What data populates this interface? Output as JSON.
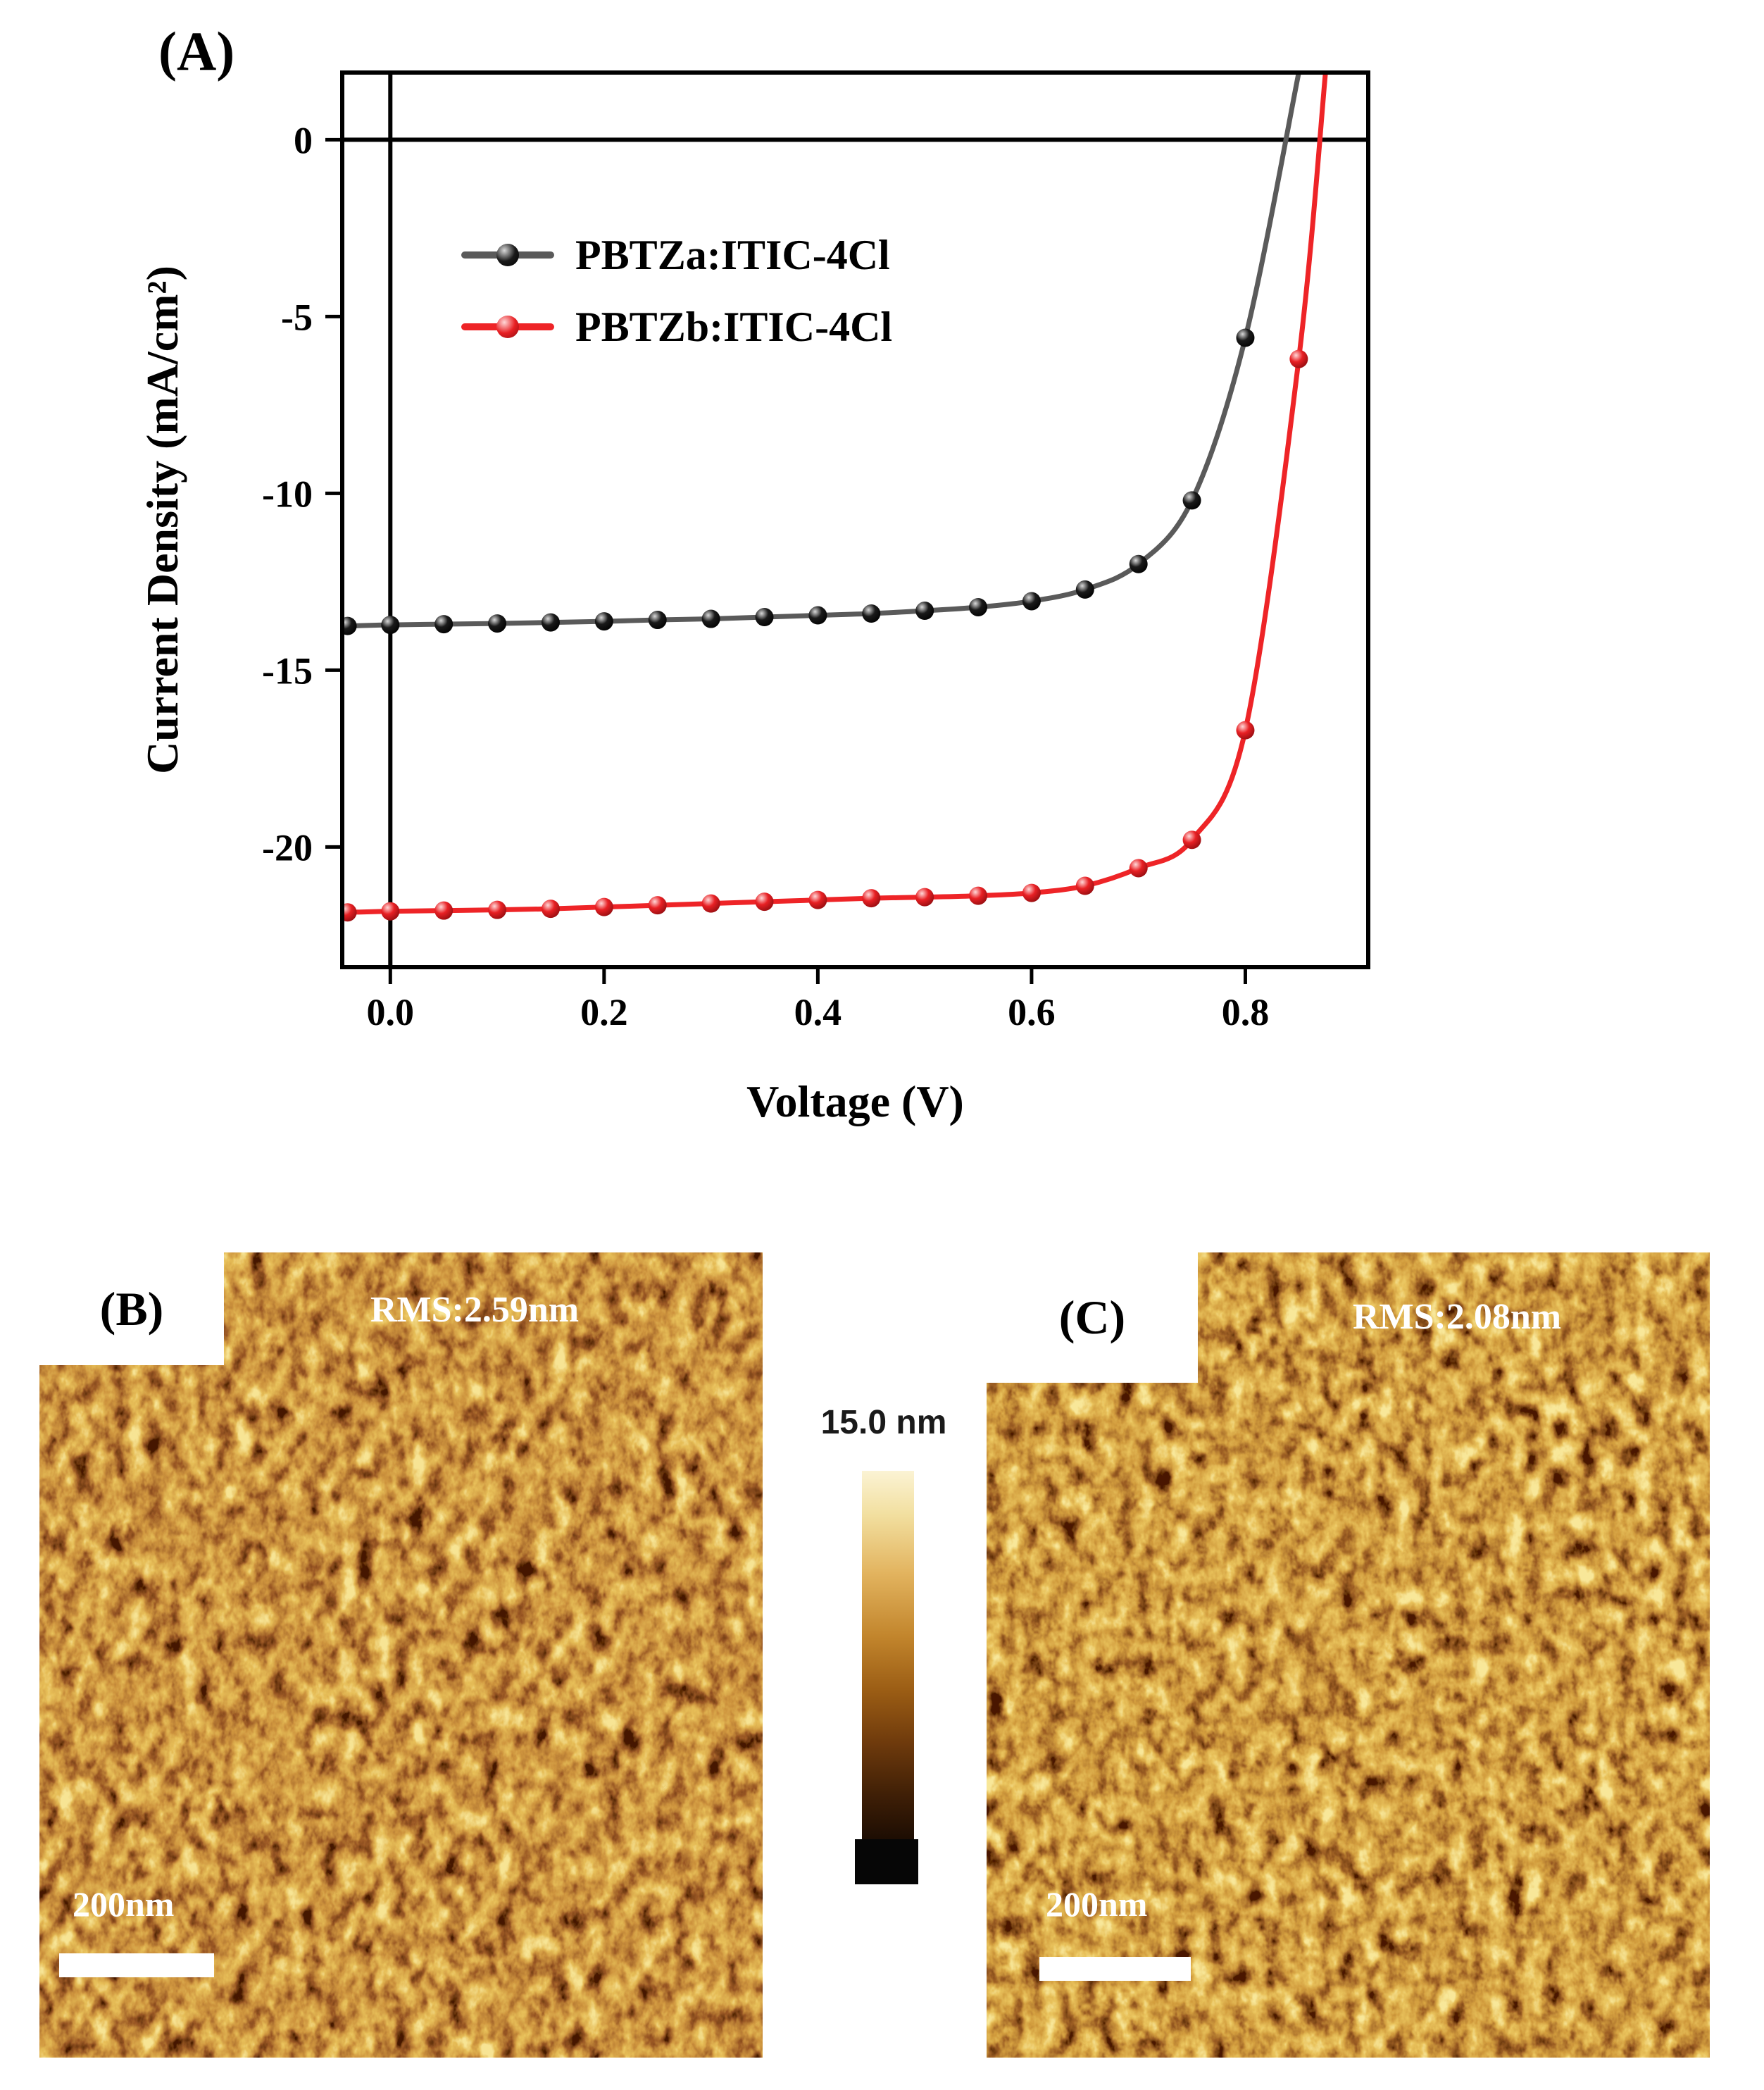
{
  "figure": {
    "background": "#ffffff",
    "panels": {
      "a_label": "(A)",
      "b_label": "(B)",
      "c_label": "(C)"
    }
  },
  "chart_data": {
    "type": "line",
    "title": "",
    "xlabel": "Voltage (V)",
    "ylabel": "Current Density (mA/cm²)",
    "xlim": [
      -0.045,
      0.915
    ],
    "ylim": [
      -23.4,
      1.9
    ],
    "xticks": [
      0.0,
      0.2,
      0.4,
      0.6,
      0.8
    ],
    "xtick_labels": [
      "0.0",
      "0.2",
      "0.4",
      "0.6",
      "0.8"
    ],
    "yticks": [
      0,
      -5,
      -10,
      -15,
      -20
    ],
    "ytick_labels": [
      "0",
      "-5",
      "-10",
      "-15",
      "-20"
    ],
    "grid": false,
    "zero_lines": true,
    "legend_position": "upper-left-inside",
    "series": [
      {
        "name": "PBTZa:ITIC-4Cl",
        "line_color": "#5a5a5a",
        "marker_color": "#1a1a1a",
        "marker_highlight": "#d9d9d9",
        "marker_edge": "#000000",
        "x": [
          -0.04,
          0.0,
          0.05,
          0.1,
          0.15,
          0.2,
          0.25,
          0.3,
          0.35,
          0.4,
          0.45,
          0.5,
          0.55,
          0.6,
          0.65,
          0.7,
          0.75,
          0.8,
          0.85
        ],
        "y": [
          -13.75,
          -13.72,
          -13.7,
          -13.68,
          -13.65,
          -13.62,
          -13.58,
          -13.55,
          -13.5,
          -13.45,
          -13.4,
          -13.32,
          -13.22,
          -13.05,
          -12.72,
          -12.0,
          -10.2,
          -5.6,
          1.9
        ]
      },
      {
        "name": "PBTZb:ITIC-4Cl",
        "line_color": "#ee2427",
        "marker_color": "#e82024",
        "marker_highlight": "#ffd8d8",
        "marker_edge": "#8d0b0e",
        "x": [
          -0.04,
          0.0,
          0.05,
          0.1,
          0.15,
          0.2,
          0.25,
          0.3,
          0.35,
          0.4,
          0.45,
          0.5,
          0.55,
          0.6,
          0.65,
          0.7,
          0.75,
          0.8,
          0.85,
          0.875
        ],
        "y": [
          -21.85,
          -21.82,
          -21.8,
          -21.78,
          -21.75,
          -21.7,
          -21.65,
          -21.6,
          -21.55,
          -21.5,
          -21.45,
          -21.42,
          -21.38,
          -21.3,
          -21.1,
          -20.6,
          -19.8,
          -16.7,
          -6.2,
          1.9
        ]
      }
    ]
  },
  "afm": {
    "b": {
      "rms_label": "RMS:2.59nm",
      "scalebar_label": "200nm"
    },
    "c": {
      "rms_label": "RMS:2.08nm",
      "scalebar_label": "200nm"
    },
    "palette": [
      "#140800",
      "#55290a",
      "#9e4d0d",
      "#cc8422",
      "#edc66f"
    ]
  },
  "colorbar": {
    "top_label": "15.0 nm",
    "top_color": "#fbf3d4",
    "bottom_color": "#060606"
  }
}
